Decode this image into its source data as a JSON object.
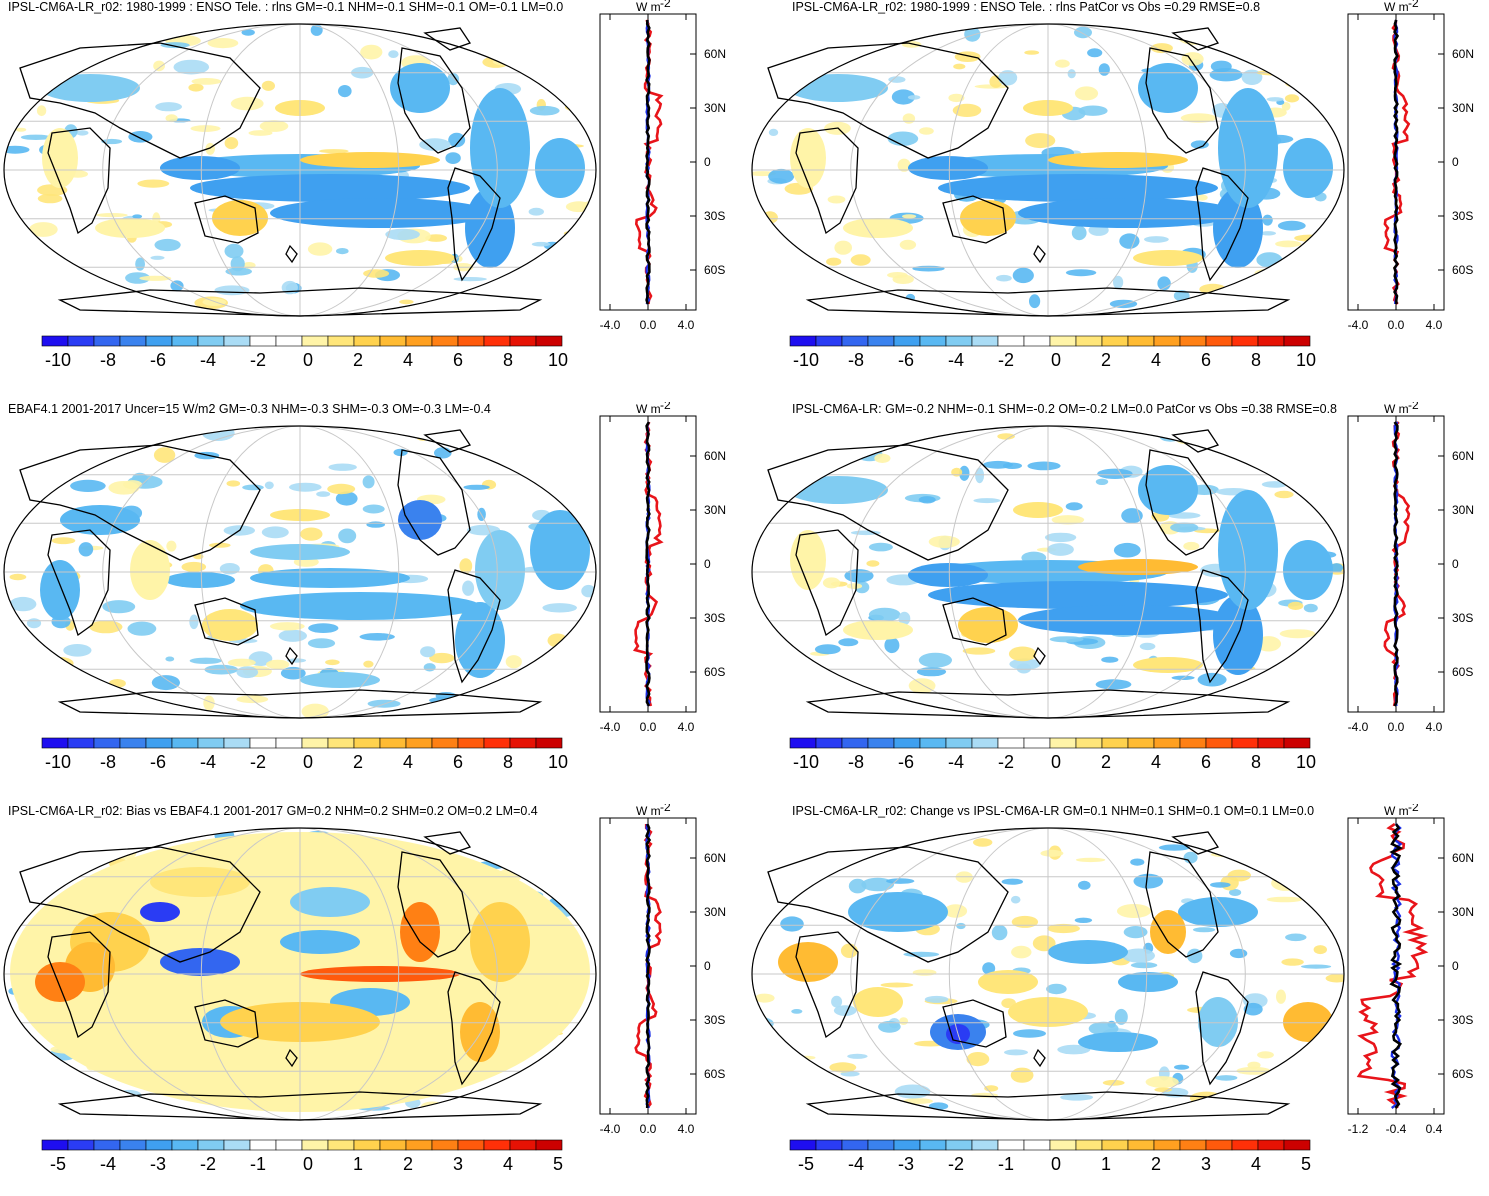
{
  "panels": [
    {
      "title": "IPSL-CM6A-LR_r02: 1980-1999 : ENSO Tele. : rlns GM=-0.1 NHM=-0.1 SHM=-0.1 OM=-0.1 LM=0.0",
      "variant": "model",
      "cbar_ticks": [
        "-10",
        "-8",
        "-6",
        "-4",
        "-2",
        "0",
        "2",
        "4",
        "6",
        "8",
        "10"
      ],
      "xticks": [
        "-4.0",
        "0.0",
        "4.0"
      ]
    },
    {
      "title": "IPSL-CM6A-LR_r02: 1980-1999 : ENSO Tele. : rlns PatCor vs Obs =0.29 RMSE=0.8",
      "variant": "model",
      "cbar_ticks": [
        "-10",
        "-8",
        "-6",
        "-4",
        "-2",
        "0",
        "2",
        "4",
        "6",
        "8",
        "10"
      ],
      "xticks": [
        "-4.0",
        "0.0",
        "4.0"
      ]
    },
    {
      "title": "EBAF4.1 2001-2017 Uncer=15 W/m2 GM=-0.3 NHM=-0.3 SHM=-0.3 OM=-0.3 LM=-0.4",
      "variant": "obs",
      "cbar_ticks": [
        "-10",
        "-8",
        "-6",
        "-4",
        "-2",
        "0",
        "2",
        "4",
        "6",
        "8",
        "10"
      ],
      "xticks": [
        "-4.0",
        "0.0",
        "4.0"
      ]
    },
    {
      "title": "IPSL-CM6A-LR: GM=-0.2 NHM=-0.1 SHM=-0.2 OM=-0.2 LM=0.0 PatCor vs Obs =0.38 RMSE=0.8",
      "variant": "ref",
      "cbar_ticks": [
        "-10",
        "-8",
        "-6",
        "-4",
        "-2",
        "0",
        "2",
        "4",
        "6",
        "8",
        "10"
      ],
      "xticks": [
        "-4.0",
        "0.0",
        "4.0"
      ]
    },
    {
      "title": "IPSL-CM6A-LR_r02: Bias vs EBAF4.1 2001-2017 GM=0.2 NHM=0.2 SHM=0.2 OM=0.2 LM=0.4",
      "variant": "bias",
      "cbar_ticks": [
        "-5",
        "-4",
        "-3",
        "-2",
        "-1",
        "0",
        "1",
        "2",
        "3",
        "4",
        "5"
      ],
      "xticks": [
        "-4.0",
        "0.0",
        "4.0"
      ]
    },
    {
      "title": "IPSL-CM6A-LR_r02: Change vs IPSL-CM6A-LR GM=0.1 NHM=0.1 SHM=0.1 OM=0.1 LM=0.0",
      "variant": "change",
      "cbar_ticks": [
        "-5",
        "-4",
        "-3",
        "-2",
        "-1",
        "0",
        "1",
        "2",
        "3",
        "4",
        "5"
      ],
      "xticks": [
        "-1.2",
        "-0.4",
        "0.4"
      ]
    }
  ],
  "profile": {
    "units": "W m",
    "units_exp": "-2",
    "lat_labels": [
      "60N",
      "30N",
      "0",
      "30S",
      "60S"
    ]
  },
  "colors": {
    "palette": [
      "#1e0ef0",
      "#2a3cf4",
      "#3366f0",
      "#3a82ee",
      "#3fa0f0",
      "#59b8f2",
      "#80ccf2",
      "#aadcf5",
      "#ffffff",
      "#ffffff",
      "#fff4a8",
      "#ffe67a",
      "#ffd24e",
      "#ffbb33",
      "#ffa020",
      "#ff8014",
      "#ff5a0c",
      "#ff3008",
      "#e61204",
      "#cc0000"
    ],
    "red_line": "#e8141a",
    "blue_line": "#1a2ee6",
    "black_line": "#000000"
  }
}
